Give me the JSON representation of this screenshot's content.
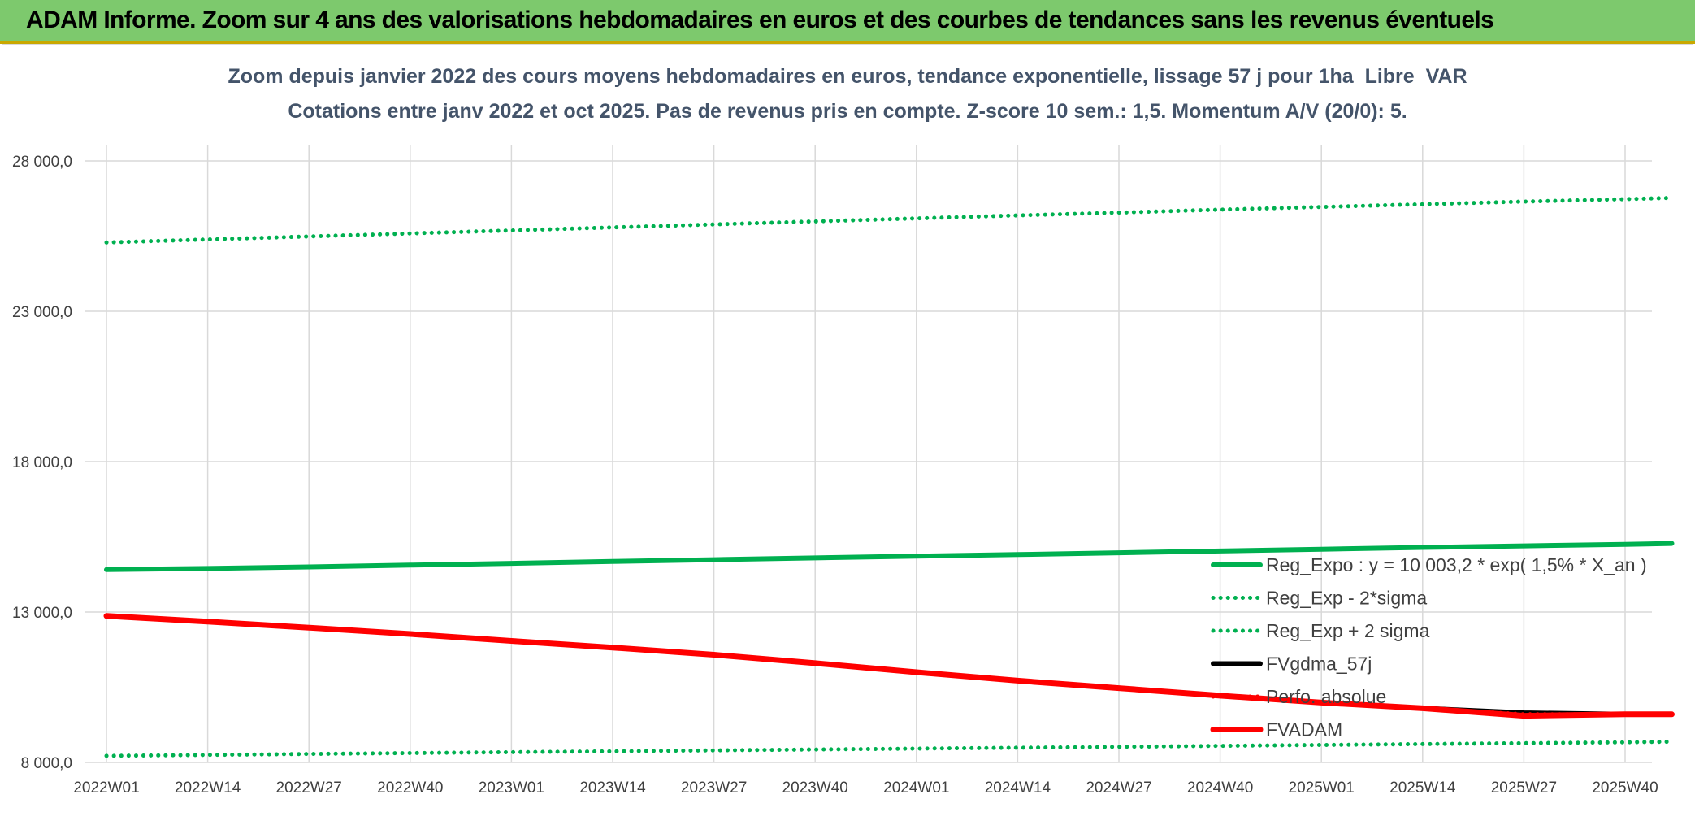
{
  "header": {
    "title": "ADAM Informe. Zoom sur 4 ans des valorisations hebdomadaires en euros et des courbes de tendances sans les revenus éventuels"
  },
  "colors": {
    "title_bar": "#7dc96d",
    "title_bar_border": "#c9a800",
    "trend_green": "#00b050",
    "price_red": "#ff0000",
    "smooth_black": "#000000",
    "grid": "#d9d9d9",
    "subtitle_text": "#44546a"
  },
  "chart_data": {
    "type": "line",
    "title": "Zoom depuis janvier 2022 des cours moyens hebdomadaires en euros, tendance exponentielle, lissage 57 j pour 1ha_Libre_VAR",
    "subtitle": "Cotations entre janv 2022 et oct 2025. Pas de revenus pris en compte. Z-score 10 sem.: 1,5. Momentum A/V (20/0): 5.",
    "xlabel": "",
    "ylabel": "",
    "ylim": [
      8000,
      28000
    ],
    "y_ticks": [
      "28 000,0",
      "23 000,0",
      "18 000,0",
      "13 000,0",
      "8 000,0"
    ],
    "y_tick_values": [
      28000,
      23000,
      18000,
      13000,
      8000
    ],
    "x_tick_labels": [
      "2022W01",
      "2022W14",
      "2022W27",
      "2022W40",
      "2023W01",
      "2023W14",
      "2023W27",
      "2023W40",
      "2024W01",
      "2024W14",
      "2024W27",
      "2024W40",
      "2025W01",
      "2025W14",
      "2025W27",
      "2025W40"
    ],
    "grid": true,
    "legend_position": "bottom-right",
    "legend": [
      "Reg_Expo : y = 10 003,2 * exp( 1,5% *  X_an )",
      "Reg_Exp - 2*sigma",
      "Reg_Exp + 2 sigma",
      "FVgdma_57j",
      "Perfo. absolue",
      "FVADAM"
    ],
    "series": [
      {
        "name": "Reg_Expo : y = 10 003,2 * exp( 1,5% *  X_an )",
        "style": "solid",
        "color": "#00b050",
        "x": [
          0,
          13,
          26,
          39,
          52,
          65,
          78,
          91,
          104,
          117,
          130,
          143,
          156,
          169,
          182,
          195,
          201
        ],
        "values": [
          14410,
          14450,
          14500,
          14560,
          14620,
          14680,
          14740,
          14800,
          14860,
          14910,
          14970,
          15030,
          15090,
          15150,
          15200,
          15250,
          15280
        ]
      },
      {
        "name": "Reg_Exp - 2*sigma",
        "style": "dotted",
        "color": "#00b050",
        "x": [
          0,
          13,
          26,
          39,
          52,
          65,
          78,
          91,
          104,
          117,
          130,
          143,
          156,
          169,
          182,
          195,
          201
        ],
        "values": [
          8220,
          8250,
          8280,
          8310,
          8340,
          8370,
          8400,
          8430,
          8460,
          8490,
          8520,
          8550,
          8580,
          8610,
          8640,
          8670,
          8690
        ]
      },
      {
        "name": "Reg_Exp + 2 sigma",
        "style": "dotted",
        "color": "#00b050",
        "x": [
          0,
          13,
          26,
          39,
          52,
          65,
          78,
          91,
          104,
          117,
          130,
          143,
          156,
          169,
          182,
          195,
          201
        ],
        "values": [
          25290,
          25390,
          25490,
          25590,
          25690,
          25790,
          25890,
          25990,
          26090,
          26190,
          26280,
          26380,
          26470,
          26560,
          26650,
          26730,
          26770
        ]
      },
      {
        "name": "FVgdma_57j",
        "style": "solid",
        "color": "#000000",
        "x": [
          0,
          13,
          26,
          39,
          52,
          65,
          78,
          91,
          104,
          117,
          130,
          143,
          156,
          169,
          182,
          195,
          201
        ],
        "values": [
          12870,
          12680,
          12480,
          12270,
          12040,
          11820,
          11580,
          11300,
          11000,
          10720,
          10470,
          10220,
          9990,
          9800,
          9650,
          9600,
          9600
        ]
      },
      {
        "name": "Perfo. absolue",
        "style": "dotted",
        "color": "#ff0000",
        "x": [
          0,
          13,
          26,
          39,
          52,
          65,
          78,
          91,
          104,
          117,
          130,
          143,
          156,
          169,
          182,
          195,
          201
        ],
        "values": [
          12870,
          12680,
          12480,
          12270,
          12040,
          11820,
          11580,
          11300,
          11000,
          10720,
          10470,
          10220,
          9990,
          9800,
          9600,
          9600,
          9600
        ]
      },
      {
        "name": "FVADAM",
        "style": "solid",
        "color": "#ff0000",
        "x": [
          0,
          13,
          26,
          39,
          52,
          65,
          78,
          91,
          104,
          117,
          130,
          143,
          156,
          169,
          182,
          195,
          201
        ],
        "values": [
          12870,
          12680,
          12480,
          12270,
          12040,
          11820,
          11580,
          11300,
          11000,
          10720,
          10470,
          10220,
          9990,
          9800,
          9550,
          9600,
          9600
        ]
      }
    ]
  }
}
